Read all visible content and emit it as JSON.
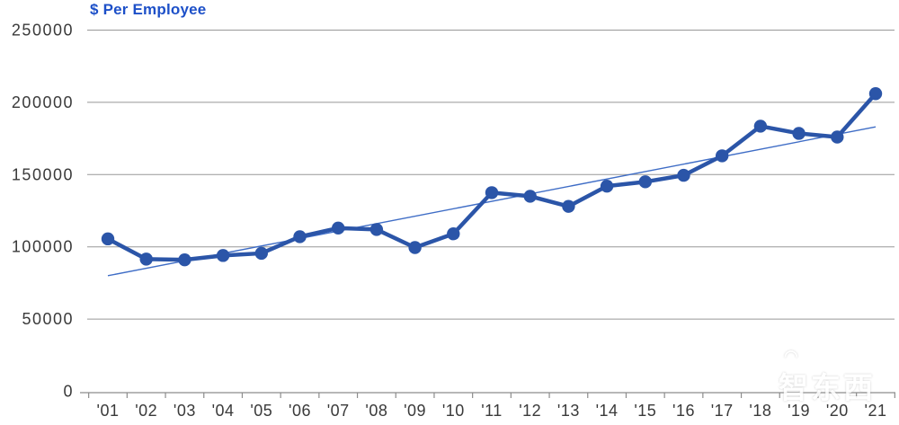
{
  "title": "$ Per Employee",
  "watermark": {
    "text": "智东西",
    "logo": "wifi-arc-icon"
  },
  "colors": {
    "title": "#1d50c8",
    "series_line": "#2b55a8",
    "trend_line": "#3f6dc6",
    "gridline": "#989898",
    "axis_line": "#8c8c8c",
    "tick_text": "#3a3a3a",
    "watermark": "#ffffff"
  },
  "chart_data": {
    "type": "line",
    "title": "$ Per Employee",
    "categories": [
      "'01",
      "'02",
      "'03",
      "'04",
      "'05",
      "'06",
      "'07",
      "'08",
      "'09",
      "'10",
      "'11",
      "'12",
      "'13",
      "'14",
      "'15",
      "'16",
      "'17",
      "'18",
      "'19",
      "'20",
      "'21"
    ],
    "series": [
      {
        "name": "$ per employee",
        "type": "line-with-markers",
        "values": [
          105500,
          91500,
          91000,
          94000,
          95500,
          107000,
          113000,
          112000,
          99500,
          109000,
          137500,
          135000,
          128000,
          142000,
          145000,
          149500,
          163000,
          183500,
          178500,
          176000,
          206000
        ]
      },
      {
        "name": "linear trend",
        "type": "trendline",
        "start_value": 80000,
        "end_value": 183000
      }
    ],
    "xlabel": "",
    "ylabel": "",
    "ylim": [
      0,
      250000
    ],
    "ytick_step": 50000,
    "ytick_labels": [
      "0",
      "50000",
      "100000",
      "150000",
      "200000",
      "250000"
    ],
    "grid": "horizontal",
    "legend_position": "none"
  }
}
